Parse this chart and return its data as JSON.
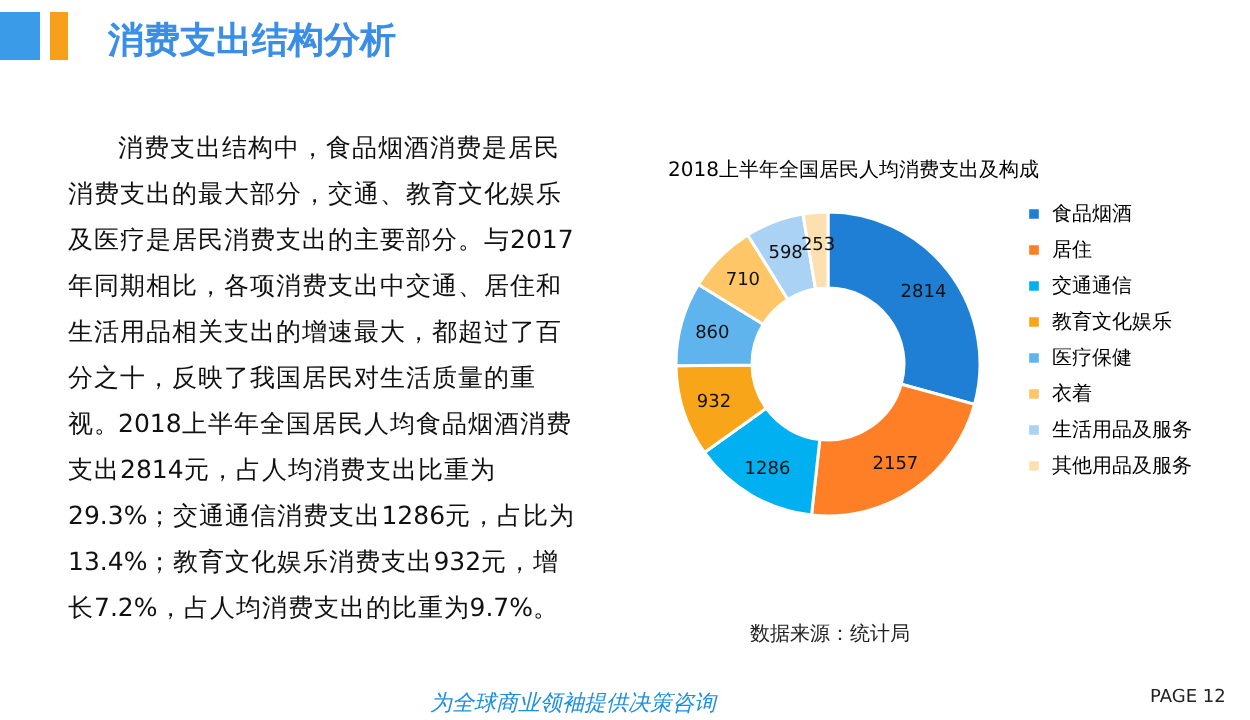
{
  "chart_data": {
    "type": "donut",
    "title": "2018上半年全国居民人均消费支出及构成",
    "categories": [
      "食品烟酒",
      "居住",
      "交通通信",
      "教育文化娱乐",
      "医疗保健",
      "衣着",
      "生活用品及服务",
      "其他用品及服务"
    ],
    "values": [
      2814,
      2157,
      1286,
      932,
      860,
      710,
      598,
      253
    ],
    "colors": [
      "#1f7fd4",
      "#ff7f27",
      "#00b0f0",
      "#f9a51a",
      "#5fb4ee",
      "#ffc667",
      "#a9d2f5",
      "#fde0b0"
    ],
    "data_labels": true,
    "legend": "right",
    "annotations": [
      "消费支出结构分析",
      "消费支出结构中，食品烟酒消费是居民消费支出的最大部分，交通、教育文化娱乐及医疗是居民消费支出的主要部分。与2017年同期相比，各项消费支出中交通、居住和生活用品相关支出的增速最大，都超过了百分之十，反映了我国居民对生活质量的重视。",
      "2018上半年全国居民人均食品烟酒消费支出2814元，占人均消费支出比重为29.3%；交通通信消费支出1286元，占比为13.4%；教育文化娱乐消费支出932元，增长7.2%，占人均消费支出的比重为9.7%。",
      "数据来源：统计局",
      "为全球商业领袖提供决策咨询",
      "PAGE  12"
    ]
  }
}
